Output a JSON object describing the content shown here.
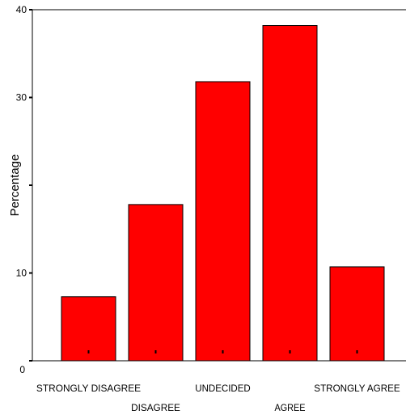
{
  "chart_data": {
    "type": "bar",
    "title": "",
    "xlabel": "",
    "ylabel": "Percentage",
    "categories": [
      "STRONGLY DISAGREE",
      "DISAGREE",
      "UNDECIDED",
      "AGREE",
      "STRONGLY AGREE"
    ],
    "values": [
      7.3,
      17.8,
      31.8,
      38.2,
      10.7
    ],
    "yticks": [
      "0",
      "10",
      "30",
      "40"
    ],
    "ylim": [
      0,
      40.5
    ],
    "grid": false,
    "legend": "none",
    "bar_color": "#ff0000",
    "bar_stroke": "#000000"
  }
}
